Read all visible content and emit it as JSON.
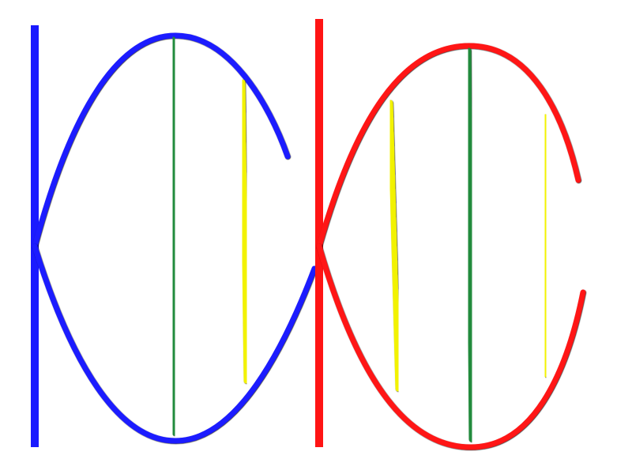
{
  "diagram": {
    "structure": "double-helix-segments",
    "segments": [
      {
        "strand_color": "#1a1aff",
        "rungs": [
          {
            "color": "#f2f200"
          },
          {
            "color": "#228b3c"
          },
          {
            "color": "#f2f200"
          }
        ]
      },
      {
        "strand_color": "#ff1414",
        "rungs": [
          {
            "color": "#f2f200"
          },
          {
            "color": "#228b3c"
          },
          {
            "color": "#f2f200"
          }
        ]
      }
    ]
  }
}
